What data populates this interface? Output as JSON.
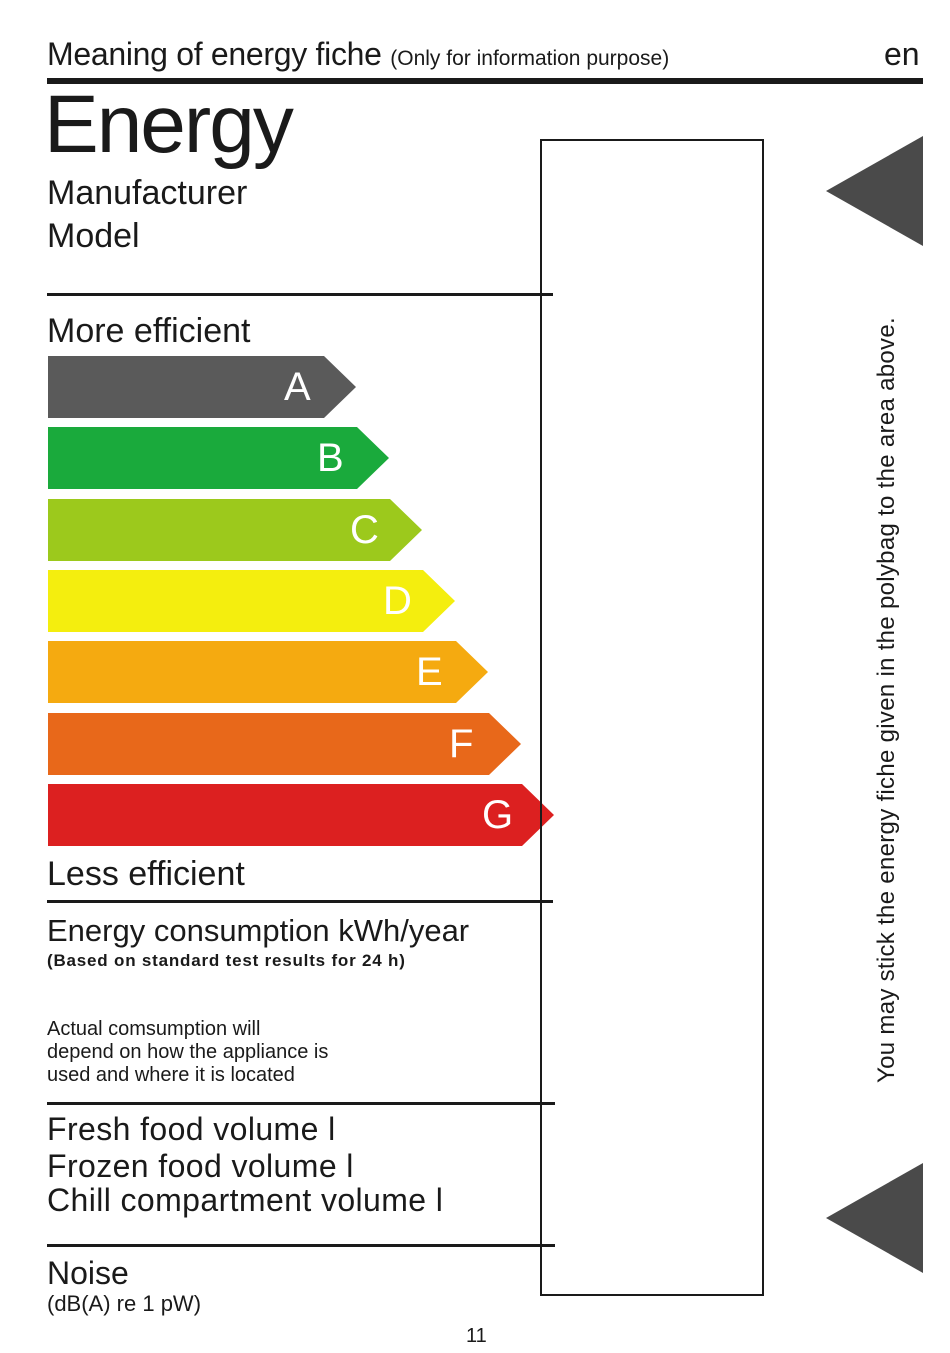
{
  "header": {
    "title": "Meaning of energy fiche",
    "subtitle": "(Only for information purpose)",
    "lang": "en"
  },
  "label": {
    "energy": "Energy",
    "manufacturer": "Manufacturer",
    "model": "Model",
    "more_efficient": "More efficient",
    "less_efficient": "Less efficient"
  },
  "bands": [
    {
      "letter": "A",
      "color": "#5a5a5a"
    },
    {
      "letter": "B",
      "color": "#1aaa3c"
    },
    {
      "letter": "C",
      "color": "#9cc91c"
    },
    {
      "letter": "D",
      "color": "#f4ee0e"
    },
    {
      "letter": "E",
      "color": "#f5aa10"
    },
    {
      "letter": "F",
      "color": "#e8681a"
    },
    {
      "letter": "G",
      "color": "#dc2020"
    }
  ],
  "consumption": {
    "title": "Energy consumption kWh/year",
    "note": "(Based on standard test results for 24 h)",
    "actual_note": "Actual comsumption will\ndepend on how the appliance is\nused and where it is located"
  },
  "volumes": {
    "fresh": "Fresh food volume l",
    "frozen": "Frozen food volume l",
    "chill": "Chill compartment volume l"
  },
  "noise": {
    "label": "Noise",
    "unit": "(dB(A) re 1 pW)"
  },
  "side_note": "You may stick the energy fiche given in the polybag to the area above.",
  "page_number": "11"
}
